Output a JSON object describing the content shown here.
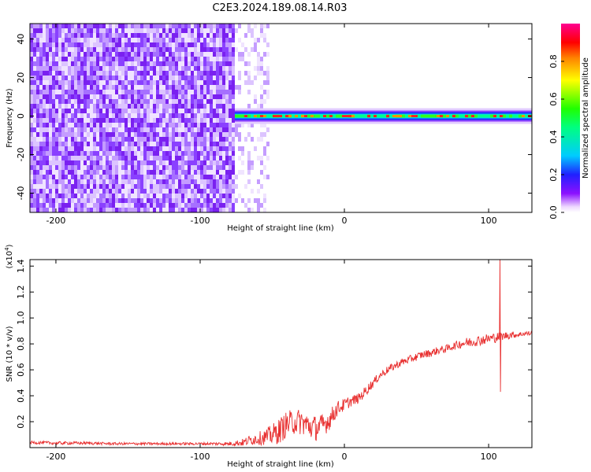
{
  "title": "C2E3.2024.189.08.14.R03",
  "chart_data": [
    {
      "type": "heatmap",
      "xlabel": "Height of straight line (km)",
      "ylabel": "Frequency (Hz)",
      "xlim": [
        -218,
        130
      ],
      "ylim": [
        -50,
        48
      ],
      "xticks": [
        -200,
        -100,
        0,
        100
      ],
      "yticks": [
        -40,
        -20,
        0,
        20,
        40
      ],
      "colorbar": {
        "label": "Normalized spectral amplitude",
        "range": [
          0,
          1
        ],
        "ticks": [
          "0.0",
          "0.2",
          "0.4",
          "0.6",
          "0.8"
        ],
        "tick_values": [
          0.0,
          0.2,
          0.4,
          0.6,
          0.8
        ],
        "colors": [
          "#ffffff",
          "#e6d0ff",
          "#8000ff",
          "#0000ff",
          "#00e0ff",
          "#00ff00",
          "#ffff00",
          "#ff8000",
          "#ff0000",
          "#ff00a0"
        ]
      },
      "regions": [
        {
          "x": [
            -218,
            -75
          ],
          "description_value": "broadband noise, amplitude ~0.1-0.3"
        },
        {
          "x": [
            -75,
            130
          ],
          "y_center": 0,
          "y_halfwidth": 3,
          "peak_amplitude": 0.95
        }
      ]
    },
    {
      "type": "line",
      "xlabel": "Height of straight line (km)",
      "ylabel": "SNR (10 * v/v)",
      "multiplier": "(x10",
      "multiplier_exp": "4",
      "multiplier_close": ")",
      "xlim": [
        -218,
        130
      ],
      "ylim": [
        0,
        1.45
      ],
      "xticks": [
        -200,
        -100,
        0,
        100
      ],
      "yticks": [
        0.2,
        0.4,
        0.6,
        0.8,
        1.0,
        1.2,
        1.4
      ],
      "ytick_labels": [
        "0.2",
        "0.4",
        "0.6",
        "0.8",
        "1.0",
        "1.2",
        "1.4"
      ],
      "color": "#e83030",
      "series": [
        {
          "x": [
            -218,
            -200,
            -180,
            -160,
            -140,
            -120,
            -100,
            -90,
            -80,
            -70,
            -65,
            -60,
            -55,
            -50,
            -45,
            -40,
            -35,
            -30,
            -25,
            -20,
            -15,
            -10,
            -5,
            0,
            5,
            10,
            15,
            20,
            25,
            30,
            35,
            40,
            45,
            50,
            55,
            60,
            65,
            70,
            75,
            80,
            85,
            90,
            95,
            100,
            105,
            110,
            115,
            120,
            125,
            130
          ],
          "y": [
            0.04,
            0.035,
            0.035,
            0.03,
            0.03,
            0.03,
            0.03,
            0.03,
            0.03,
            0.04,
            0.06,
            0.07,
            0.08,
            0.1,
            0.13,
            0.18,
            0.2,
            0.2,
            0.17,
            0.15,
            0.17,
            0.22,
            0.3,
            0.33,
            0.36,
            0.38,
            0.44,
            0.5,
            0.56,
            0.6,
            0.63,
            0.66,
            0.68,
            0.7,
            0.72,
            0.73,
            0.75,
            0.76,
            0.78,
            0.8,
            0.81,
            0.82,
            0.83,
            0.84,
            0.85,
            0.86,
            0.87,
            0.87,
            0.88,
            0.88
          ],
          "noise": [
            0.012,
            0.012,
            0.012,
            0.01,
            0.01,
            0.01,
            0.01,
            0.012,
            0.015,
            0.03,
            0.04,
            0.05,
            0.06,
            0.08,
            0.1,
            0.1,
            0.1,
            0.1,
            0.1,
            0.1,
            0.09,
            0.08,
            0.06,
            0.05,
            0.04,
            0.04,
            0.04,
            0.035,
            0.03,
            0.03,
            0.03,
            0.03,
            0.03,
            0.03,
            0.03,
            0.03,
            0.03,
            0.03,
            0.03,
            0.035,
            0.04,
            0.04,
            0.04,
            0.04,
            0.04,
            0.03,
            0.03,
            0.02,
            0.02,
            0.02
          ]
        }
      ],
      "spikes": [
        {
          "x": 108,
          "y_max": 1.45,
          "y_min": 0.43
        }
      ]
    }
  ]
}
